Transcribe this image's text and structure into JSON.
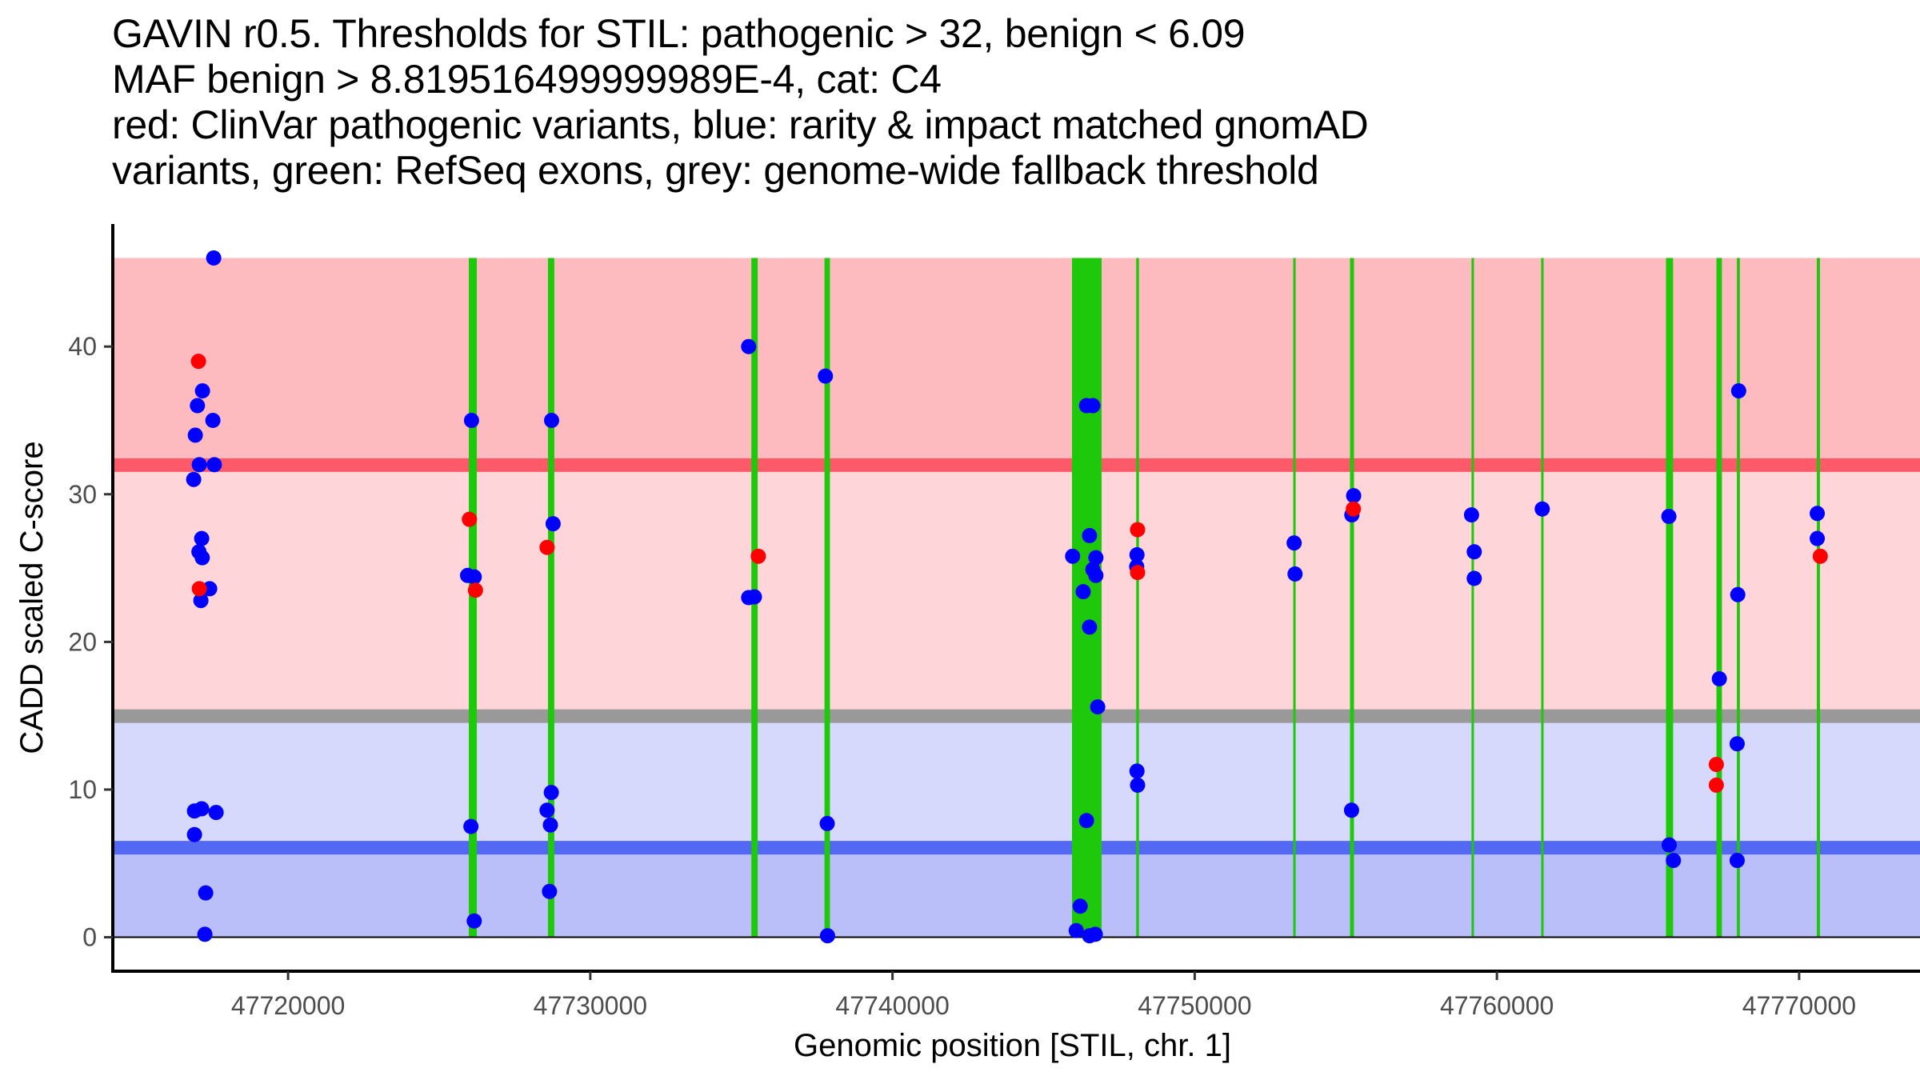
{
  "chart_data": {
    "type": "scatter",
    "title_lines": [
      "GAVIN r0.5. Thresholds for STIL: pathogenic > 32, benign < 6.09",
      "MAF benign > 8.819516499999989E-4, cat: C4",
      "red: ClinVar pathogenic variants, blue: rarity & impact matched gnomAD",
      "variants, green: RefSeq exons, grey: genome-wide fallback threshold"
    ],
    "xlabel": "Genomic position [STIL, chr. 1]",
    "ylabel": "CADD scaled C-score",
    "xlim": [
      47714200,
      47774000
    ],
    "ylim": [
      -2.3,
      48.3
    ],
    "x_ticks": [
      47720000,
      47730000,
      47740000,
      47750000,
      47760000,
      47770000
    ],
    "x_tick_labels": [
      "47720000",
      "47730000",
      "47740000",
      "47750000",
      "47760000",
      "47770000"
    ],
    "y_ticks": [
      0,
      10,
      20,
      30,
      40
    ],
    "y_tick_labels": [
      "0",
      "10",
      "20",
      "30",
      "40"
    ],
    "grid": false,
    "thresholds": {
      "pathogenic": 32,
      "benign": 6.09,
      "genome_wide_fallback": 15,
      "maf_benign": "8.819516499999989E-4",
      "category": "C4"
    },
    "bands": [
      {
        "name": "pathogenic-region",
        "from": 32,
        "to": 46,
        "color": "#fdbbc0"
      },
      {
        "name": "above-fallback-region",
        "from": 15,
        "to": 32,
        "color": "#fed6da"
      },
      {
        "name": "below-fallback-region",
        "from": 6.09,
        "to": 15,
        "color": "#d6d9fb"
      },
      {
        "name": "benign-region",
        "from": 0,
        "to": 6.09,
        "color": "#babffa"
      }
    ],
    "threshold_lines": [
      {
        "name": "pathogenic-threshold-line",
        "y": 32,
        "color": "#fc5a69"
      },
      {
        "name": "fallback-threshold-line",
        "y": 15,
        "color": "#999999"
      },
      {
        "name": "benign-threshold-line",
        "y": 6.09,
        "color": "#5368f3"
      }
    ],
    "exons": [
      {
        "start": 47725980,
        "end": 47726245
      },
      {
        "start": 47728600,
        "end": 47728810
      },
      {
        "start": 47735330,
        "end": 47735540
      },
      {
        "start": 47737750,
        "end": 47737930
      },
      {
        "start": 47745940,
        "end": 47746920
      },
      {
        "start": 47748065,
        "end": 47748155
      },
      {
        "start": 47753260,
        "end": 47753340
      },
      {
        "start": 47755140,
        "end": 47755270
      },
      {
        "start": 47759160,
        "end": 47759240
      },
      {
        "start": 47761465,
        "end": 47761540
      },
      {
        "start": 47765595,
        "end": 47765830
      },
      {
        "start": 47767265,
        "end": 47767445
      },
      {
        "start": 47767940,
        "end": 47768040
      },
      {
        "start": 47770585,
        "end": 47770690
      }
    ],
    "series": [
      {
        "name": "ClinVar pathogenic variants",
        "color": "#ff0000",
        "points": [
          [
            47717035,
            39.0
          ],
          [
            47717062,
            23.6
          ],
          [
            47726000,
            28.3
          ],
          [
            47726200,
            23.5
          ],
          [
            47728570,
            26.4
          ],
          [
            47735560,
            25.8
          ],
          [
            47748110,
            27.6
          ],
          [
            47748110,
            24.7
          ],
          [
            47755250,
            29.0
          ],
          [
            47767260,
            11.7
          ],
          [
            47767260,
            10.3
          ],
          [
            47770700,
            25.8
          ]
        ]
      },
      {
        "name": "rarity & impact matched gnomAD variants",
        "color": "#0000ff",
        "points": [
          [
            47717539,
            46.0
          ],
          [
            47717168,
            37.0
          ],
          [
            47717000,
            36.0
          ],
          [
            47717512,
            35.0
          ],
          [
            47716930,
            34.0
          ],
          [
            47717062,
            32.0
          ],
          [
            47717560,
            32.0
          ],
          [
            47716877,
            31.0
          ],
          [
            47717141,
            27.0
          ],
          [
            47717050,
            26.1
          ],
          [
            47717160,
            25.7
          ],
          [
            47717406,
            23.6
          ],
          [
            47717115,
            22.8
          ],
          [
            47716903,
            8.55
          ],
          [
            47717141,
            8.7
          ],
          [
            47717618,
            8.45
          ],
          [
            47716903,
            6.95
          ],
          [
            47717274,
            3.0
          ],
          [
            47717247,
            0.2
          ],
          [
            47726070,
            35.0
          ],
          [
            47725940,
            24.5
          ],
          [
            47726160,
            24.4
          ],
          [
            47726050,
            7.5
          ],
          [
            47726160,
            1.1
          ],
          [
            47728720,
            35.0
          ],
          [
            47728770,
            28.0
          ],
          [
            47728710,
            9.8
          ],
          [
            47728570,
            8.6
          ],
          [
            47728680,
            7.6
          ],
          [
            47728650,
            3.1
          ],
          [
            47735240,
            40.0
          ],
          [
            47735240,
            23.0
          ],
          [
            47735430,
            23.05
          ],
          [
            47737780,
            38.0
          ],
          [
            47737840,
            7.7
          ],
          [
            47737850,
            0.1
          ],
          [
            47746420,
            36.0
          ],
          [
            47746630,
            36.0
          ],
          [
            47746520,
            27.2
          ],
          [
            47745960,
            25.8
          ],
          [
            47746730,
            25.7
          ],
          [
            47746630,
            24.9
          ],
          [
            47746730,
            24.5
          ],
          [
            47746310,
            23.4
          ],
          [
            47746520,
            21.0
          ],
          [
            47746790,
            15.6
          ],
          [
            47746420,
            7.9
          ],
          [
            47746210,
            2.1
          ],
          [
            47746080,
            0.45
          ],
          [
            47746520,
            0.1
          ],
          [
            47746710,
            0.2
          ],
          [
            47748090,
            25.9
          ],
          [
            47748080,
            25.1
          ],
          [
            47748090,
            11.25
          ],
          [
            47748110,
            10.3
          ],
          [
            47753290,
            26.7
          ],
          [
            47753320,
            24.6
          ],
          [
            47755260,
            29.9
          ],
          [
            47755200,
            28.6
          ],
          [
            47755190,
            8.6
          ],
          [
            47759160,
            28.6
          ],
          [
            47759250,
            26.1
          ],
          [
            47759250,
            24.3
          ],
          [
            47761500,
            29.0
          ],
          [
            47765690,
            28.5
          ],
          [
            47765700,
            6.25
          ],
          [
            47765840,
            5.2
          ],
          [
            47767360,
            17.5
          ],
          [
            47768000,
            37.0
          ],
          [
            47767970,
            23.2
          ],
          [
            47767950,
            13.1
          ],
          [
            47767950,
            5.2
          ],
          [
            47770600,
            28.7
          ],
          [
            47770600,
            27.0
          ]
        ]
      }
    ]
  }
}
